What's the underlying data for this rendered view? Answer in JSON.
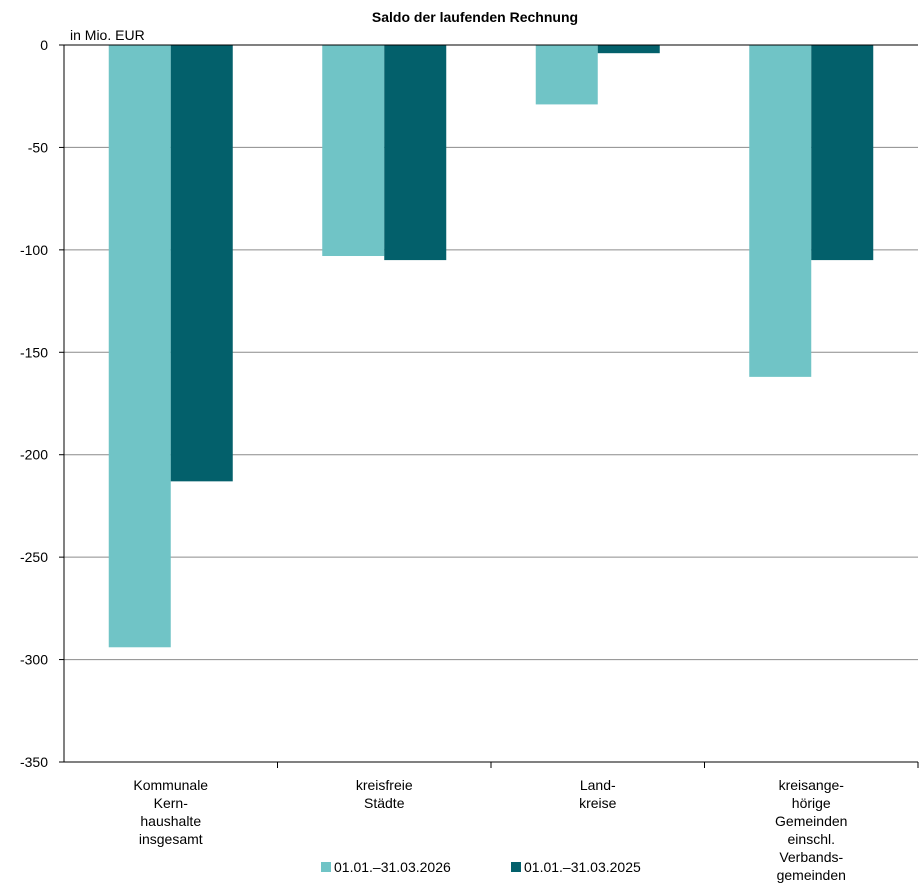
{
  "chart_data": {
    "type": "bar",
    "title": "Saldo der laufenden Rechnung",
    "unit_label": "in Mio. EUR",
    "categories": [
      [
        "Kommunale",
        "Kern-",
        "haushalte",
        "insgesamt"
      ],
      [
        "kreisfreie",
        "Städte"
      ],
      [
        "Land-",
        "kreise"
      ],
      [
        "kreisange-",
        "hörige",
        "Gemeinden",
        "einschl.",
        "Verbands-",
        "gemeinden"
      ]
    ],
    "series": [
      {
        "name": "01.01.–31.03.2026",
        "color": "#70c4c6",
        "values": [
          -294,
          -103,
          -29,
          -162
        ]
      },
      {
        "name": "01.01.–31.03.2025",
        "color": "#03606b",
        "values": [
          -213,
          -105,
          -4,
          -105
        ]
      }
    ],
    "ylim": [
      -350,
      0
    ],
    "yticks": [
      0,
      -50,
      -100,
      -150,
      -200,
      -250,
      -300,
      -350
    ],
    "grid": true,
    "legend_position": "bottom"
  }
}
